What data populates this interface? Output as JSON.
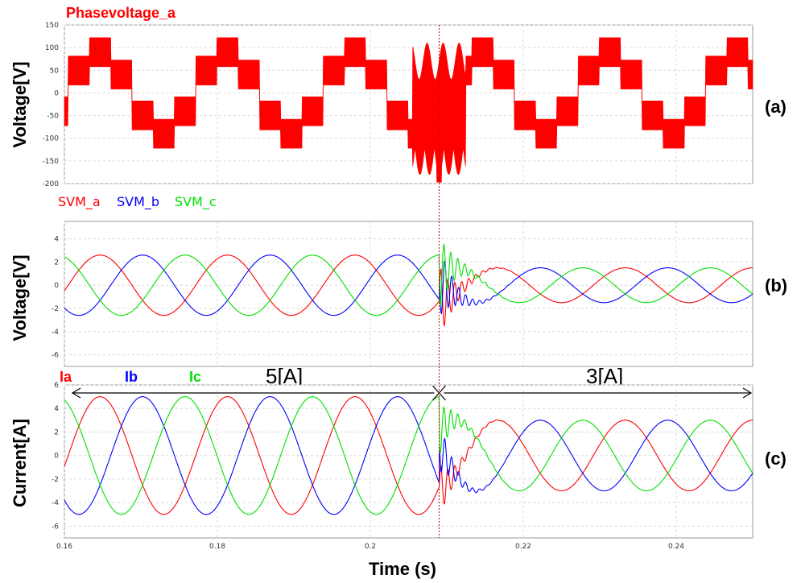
{
  "chart_data": [
    {
      "type": "line",
      "title": "Phasevoltage_a",
      "ylabel": "Voltage[V]",
      "panel_label": "(a)",
      "ylim": [
        -200,
        150
      ],
      "yticks": [
        150,
        100,
        50,
        0,
        -50,
        -100,
        -150,
        -200
      ],
      "xlim": [
        0.16,
        0.25
      ],
      "fault_time": 0.209,
      "colors": {
        "title": "#ff0000",
        "trace": "#ff0000"
      },
      "series": [
        {
          "name": "Phasevoltage_a",
          "color": "#ff0000",
          "pre_fault_peak": 120,
          "post_fault_peak": 120,
          "frequency_hz": 60,
          "min_spike": -197
        }
      ]
    },
    {
      "type": "line",
      "ylabel": "Voltage[V]",
      "panel_label": "(b)",
      "ylim": [
        -7,
        5.5
      ],
      "yticks": [
        4,
        2,
        0,
        -2,
        -4,
        -6
      ],
      "xlim": [
        0.16,
        0.25
      ],
      "fault_time": 0.209,
      "series": [
        {
          "name": "SVM_a",
          "color": "#ff0000",
          "pre_fault_amplitude": 2.6,
          "post_fault_amplitude": 1.5,
          "phase_deg": 0
        },
        {
          "name": "SVM_b",
          "color": "#0000ff",
          "pre_fault_amplitude": 2.6,
          "post_fault_amplitude": 1.5,
          "phase_deg": -120
        },
        {
          "name": "SVM_c",
          "color": "#00e000",
          "pre_fault_amplitude": 2.6,
          "post_fault_amplitude": 1.5,
          "phase_deg": 120
        }
      ]
    },
    {
      "type": "line",
      "ylabel": "Current[A]",
      "xlabel": "Time (s)",
      "panel_label": "(c)",
      "ylim": [
        -7,
        6
      ],
      "yticks": [
        6,
        4,
        2,
        0,
        -2,
        -4,
        -6
      ],
      "xlim": [
        0.16,
        0.25
      ],
      "xticks": [
        0.16,
        0.18,
        0.2,
        0.22,
        0.24
      ],
      "xtick_labels": [
        "0.16",
        "0.18",
        "0.2",
        "0.22",
        "0.24"
      ],
      "fault_time": 0.209,
      "annotations": [
        {
          "text": "5[A]",
          "from": 0.16,
          "to": 0.209
        },
        {
          "text": "3[A]",
          "from": 0.209,
          "to": 0.25
        }
      ],
      "series": [
        {
          "name": "Ia",
          "color": "#ff0000",
          "pre_fault_amplitude": 5,
          "post_fault_amplitude": 3,
          "phase_deg": 0
        },
        {
          "name": "Ib",
          "color": "#0000ff",
          "pre_fault_amplitude": 5,
          "post_fault_amplitude": 3,
          "phase_deg": -120
        },
        {
          "name": "Ic",
          "color": "#00e000",
          "pre_fault_amplitude": 5,
          "post_fault_amplitude": 3,
          "phase_deg": 120
        }
      ]
    }
  ]
}
